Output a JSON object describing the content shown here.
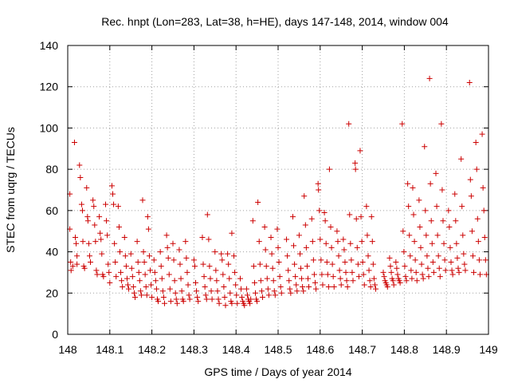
{
  "chart_data": {
    "type": "scatter",
    "title": "Rec. hnpt (Lon=283, Lat=38, h=HE), days 147-148, 2014, window 004",
    "xlabel": "GPS time / Days of year 2014",
    "ylabel": "STEC from uqrg / TECUs",
    "xlim": [
      148,
      149
    ],
    "ylim": [
      0,
      140
    ],
    "xticks": [
      148,
      148.1,
      148.2,
      148.3,
      148.4,
      148.5,
      148.6,
      148.7,
      148.8,
      148.9,
      149
    ],
    "xtick_labels": [
      "148",
      "148.1",
      "148.2",
      "148.3",
      "148.4",
      "148.5",
      "148.6",
      "148.7",
      "148.8",
      "148.9",
      "149"
    ],
    "yticks": [
      0,
      20,
      40,
      60,
      80,
      100,
      120,
      140
    ],
    "ytick_labels": [
      "0",
      "20",
      "40",
      "60",
      "80",
      "100",
      "120",
      "140"
    ],
    "grid": true,
    "marker": "plus",
    "color": "#cc0000",
    "points": [
      [
        148.005,
        68
      ],
      [
        148.005,
        51
      ],
      [
        148.007,
        35
      ],
      [
        148.008,
        31
      ],
      [
        148.012,
        33
      ],
      [
        148.016,
        93
      ],
      [
        148.018,
        47
      ],
      [
        148.02,
        44
      ],
      [
        148.022,
        38
      ],
      [
        148.022,
        34
      ],
      [
        148.028,
        82
      ],
      [
        148.03,
        76
      ],
      [
        148.033,
        63
      ],
      [
        148.035,
        60
      ],
      [
        148.036,
        45
      ],
      [
        148.038,
        33
      ],
      [
        148.04,
        32
      ],
      [
        148.045,
        71
      ],
      [
        148.047,
        57
      ],
      [
        148.048,
        55
      ],
      [
        148.05,
        44
      ],
      [
        148.052,
        38
      ],
      [
        148.054,
        35
      ],
      [
        148.06,
        65
      ],
      [
        148.062,
        62
      ],
      [
        148.064,
        53
      ],
      [
        148.066,
        45
      ],
      [
        148.068,
        31
      ],
      [
        148.07,
        29
      ],
      [
        148.075,
        57
      ],
      [
        148.077,
        49
      ],
      [
        148.079,
        46
      ],
      [
        148.081,
        39
      ],
      [
        148.083,
        29
      ],
      [
        148.085,
        28
      ],
      [
        148.09,
        63
      ],
      [
        148.092,
        55
      ],
      [
        148.094,
        48
      ],
      [
        148.096,
        34
      ],
      [
        148.098,
        30
      ],
      [
        148.1,
        25
      ],
      [
        148.105,
        72
      ],
      [
        148.107,
        68
      ],
      [
        148.109,
        63
      ],
      [
        148.111,
        44
      ],
      [
        148.113,
        35
      ],
      [
        148.115,
        28
      ],
      [
        148.12,
        62
      ],
      [
        148.122,
        52
      ],
      [
        148.124,
        40
      ],
      [
        148.126,
        30
      ],
      [
        148.128,
        26
      ],
      [
        148.13,
        23
      ],
      [
        148.135,
        47
      ],
      [
        148.137,
        38
      ],
      [
        148.139,
        33
      ],
      [
        148.141,
        27
      ],
      [
        148.143,
        24
      ],
      [
        148.145,
        22
      ],
      [
        148.15,
        39
      ],
      [
        148.152,
        32
      ],
      [
        148.154,
        28
      ],
      [
        148.156,
        23
      ],
      [
        148.158,
        20
      ],
      [
        148.16,
        18
      ],
      [
        148.165,
        45
      ],
      [
        148.167,
        35
      ],
      [
        148.169,
        30
      ],
      [
        148.171,
        26
      ],
      [
        148.173,
        21
      ],
      [
        148.175,
        19
      ],
      [
        148.178,
        65
      ],
      [
        148.18,
        40
      ],
      [
        148.182,
        35
      ],
      [
        148.184,
        29
      ],
      [
        148.186,
        23
      ],
      [
        148.188,
        19
      ],
      [
        148.19,
        57
      ],
      [
        148.192,
        51
      ],
      [
        148.194,
        38
      ],
      [
        148.196,
        31
      ],
      [
        148.198,
        24
      ],
      [
        148.2,
        18
      ],
      [
        148.205,
        36
      ],
      [
        148.207,
        30
      ],
      [
        148.209,
        26
      ],
      [
        148.211,
        22
      ],
      [
        148.213,
        17
      ],
      [
        148.215,
        16
      ],
      [
        148.22,
        40
      ],
      [
        148.222,
        33
      ],
      [
        148.224,
        27
      ],
      [
        148.226,
        21
      ],
      [
        148.228,
        18
      ],
      [
        148.23,
        15
      ],
      [
        148.235,
        48
      ],
      [
        148.237,
        42
      ],
      [
        148.239,
        37
      ],
      [
        148.241,
        29
      ],
      [
        148.243,
        22
      ],
      [
        148.245,
        16
      ],
      [
        148.25,
        44
      ],
      [
        148.252,
        36
      ],
      [
        148.254,
        26
      ],
      [
        148.256,
        20
      ],
      [
        148.258,
        17
      ],
      [
        148.26,
        15
      ],
      [
        148.265,
        41
      ],
      [
        148.267,
        34
      ],
      [
        148.269,
        27
      ],
      [
        148.271,
        21
      ],
      [
        148.273,
        17
      ],
      [
        148.275,
        16
      ],
      [
        148.28,
        45
      ],
      [
        148.282,
        37
      ],
      [
        148.284,
        30
      ],
      [
        148.286,
        24
      ],
      [
        148.288,
        19
      ],
      [
        148.29,
        17
      ],
      [
        148.3,
        36
      ],
      [
        148.302,
        33
      ],
      [
        148.304,
        25
      ],
      [
        148.306,
        21
      ],
      [
        148.308,
        18
      ],
      [
        148.31,
        16
      ],
      [
        148.32,
        47
      ],
      [
        148.322,
        34
      ],
      [
        148.324,
        28
      ],
      [
        148.326,
        23
      ],
      [
        148.328,
        19
      ],
      [
        148.33,
        17
      ],
      [
        148.332,
        58
      ],
      [
        148.335,
        46
      ],
      [
        148.337,
        33
      ],
      [
        148.339,
        27
      ],
      [
        148.341,
        21
      ],
      [
        148.343,
        17
      ],
      [
        148.35,
        40
      ],
      [
        148.352,
        31
      ],
      [
        148.354,
        26
      ],
      [
        148.356,
        21
      ],
      [
        148.358,
        17
      ],
      [
        148.36,
        15
      ],
      [
        148.365,
        39
      ],
      [
        148.367,
        36
      ],
      [
        148.369,
        29
      ],
      [
        148.371,
        23
      ],
      [
        148.373,
        18
      ],
      [
        148.375,
        14
      ],
      [
        148.38,
        39
      ],
      [
        148.382,
        34
      ],
      [
        148.384,
        27
      ],
      [
        148.386,
        20
      ],
      [
        148.388,
        16
      ],
      [
        148.39,
        15
      ],
      [
        148.39,
        49
      ],
      [
        148.395,
        38
      ],
      [
        148.397,
        30
      ],
      [
        148.399,
        24
      ],
      [
        148.401,
        19
      ],
      [
        148.403,
        15
      ],
      [
        148.41,
        27
      ],
      [
        148.412,
        22
      ],
      [
        148.414,
        18
      ],
      [
        148.416,
        16
      ],
      [
        148.418,
        15
      ],
      [
        148.42,
        14
      ],
      [
        148.425,
        22
      ],
      [
        148.427,
        19
      ],
      [
        148.429,
        17
      ],
      [
        148.431,
        16
      ],
      [
        148.433,
        15
      ],
      [
        148.435,
        17
      ],
      [
        148.44,
        55
      ],
      [
        148.442,
        33
      ],
      [
        148.444,
        25
      ],
      [
        148.446,
        20
      ],
      [
        148.448,
        17
      ],
      [
        148.45,
        16
      ],
      [
        148.452,
        64
      ],
      [
        148.455,
        45
      ],
      [
        148.457,
        34
      ],
      [
        148.459,
        26
      ],
      [
        148.461,
        21
      ],
      [
        148.463,
        18
      ],
      [
        148.468,
        52
      ],
      [
        148.47,
        41
      ],
      [
        148.472,
        33
      ],
      [
        148.474,
        27
      ],
      [
        148.476,
        22
      ],
      [
        148.478,
        19
      ],
      [
        148.483,
        47
      ],
      [
        148.485,
        39
      ],
      [
        148.487,
        32
      ],
      [
        148.489,
        26
      ],
      [
        148.491,
        21
      ],
      [
        148.493,
        19
      ],
      [
        148.498,
        51
      ],
      [
        148.5,
        42
      ],
      [
        148.502,
        35
      ],
      [
        148.504,
        28
      ],
      [
        148.506,
        23
      ],
      [
        148.508,
        20
      ],
      [
        148.52,
        46
      ],
      [
        148.522,
        38
      ],
      [
        148.524,
        31
      ],
      [
        148.526,
        26
      ],
      [
        148.528,
        22
      ],
      [
        148.53,
        20
      ],
      [
        148.535,
        57
      ],
      [
        148.537,
        43
      ],
      [
        148.539,
        34
      ],
      [
        148.541,
        28
      ],
      [
        148.543,
        24
      ],
      [
        148.545,
        21
      ],
      [
        148.55,
        48
      ],
      [
        148.552,
        39
      ],
      [
        148.554,
        32
      ],
      [
        148.556,
        27
      ],
      [
        148.558,
        23
      ],
      [
        148.56,
        21
      ],
      [
        148.562,
        67
      ],
      [
        148.565,
        53
      ],
      [
        148.567,
        42
      ],
      [
        148.569,
        33
      ],
      [
        148.571,
        27
      ],
      [
        148.573,
        23
      ],
      [
        148.58,
        56
      ],
      [
        148.582,
        45
      ],
      [
        148.584,
        36
      ],
      [
        148.586,
        29
      ],
      [
        148.588,
        25
      ],
      [
        148.59,
        22
      ],
      [
        148.595,
        73
      ],
      [
        148.596,
        70
      ],
      [
        148.598,
        60
      ],
      [
        148.6,
        46
      ],
      [
        148.602,
        36
      ],
      [
        148.604,
        29
      ],
      [
        148.606,
        24
      ],
      [
        148.61,
        59
      ],
      [
        148.612,
        55
      ],
      [
        148.614,
        44
      ],
      [
        148.616,
        35
      ],
      [
        148.618,
        29
      ],
      [
        148.62,
        23
      ],
      [
        148.622,
        80
      ],
      [
        148.625,
        52
      ],
      [
        148.627,
        42
      ],
      [
        148.629,
        34
      ],
      [
        148.631,
        28
      ],
      [
        148.633,
        23
      ],
      [
        148.64,
        50
      ],
      [
        148.642,
        45
      ],
      [
        148.644,
        38
      ],
      [
        148.646,
        31
      ],
      [
        148.648,
        27
      ],
      [
        148.65,
        24
      ],
      [
        148.655,
        46
      ],
      [
        148.657,
        41
      ],
      [
        148.659,
        35
      ],
      [
        148.661,
        30
      ],
      [
        148.663,
        26
      ],
      [
        148.665,
        23
      ],
      [
        148.668,
        102
      ],
      [
        148.67,
        58
      ],
      [
        148.672,
        44
      ],
      [
        148.674,
        36
      ],
      [
        148.676,
        30
      ],
      [
        148.678,
        26
      ],
      [
        148.683,
        83
      ],
      [
        148.684,
        80
      ],
      [
        148.686,
        56
      ],
      [
        148.688,
        42
      ],
      [
        148.69,
        34
      ],
      [
        148.692,
        28
      ],
      [
        148.695,
        89
      ],
      [
        148.697,
        57
      ],
      [
        148.699,
        45
      ],
      [
        148.701,
        35
      ],
      [
        148.703,
        29
      ],
      [
        148.705,
        24
      ],
      [
        148.71,
        62
      ],
      [
        148.712,
        48
      ],
      [
        148.714,
        38
      ],
      [
        148.716,
        31
      ],
      [
        148.718,
        26
      ],
      [
        148.72,
        23
      ],
      [
        148.722,
        57
      ],
      [
        148.724,
        45
      ],
      [
        148.726,
        34
      ],
      [
        148.728,
        27
      ],
      [
        148.73,
        24
      ],
      [
        148.732,
        22
      ],
      [
        148.75,
        30
      ],
      [
        148.752,
        28
      ],
      [
        148.754,
        26
      ],
      [
        148.756,
        25
      ],
      [
        148.758,
        24
      ],
      [
        148.76,
        23
      ],
      [
        148.765,
        37
      ],
      [
        148.767,
        33
      ],
      [
        148.769,
        30
      ],
      [
        148.771,
        27
      ],
      [
        148.773,
        26
      ],
      [
        148.775,
        24
      ],
      [
        148.78,
        35
      ],
      [
        148.782,
        32
      ],
      [
        148.784,
        29
      ],
      [
        148.786,
        27
      ],
      [
        148.788,
        26
      ],
      [
        148.79,
        25
      ],
      [
        148.795,
        102
      ],
      [
        148.797,
        50
      ],
      [
        148.799,
        40
      ],
      [
        148.801,
        33
      ],
      [
        148.803,
        28
      ],
      [
        148.805,
        26
      ],
      [
        148.808,
        73
      ],
      [
        148.81,
        62
      ],
      [
        148.812,
        48
      ],
      [
        148.814,
        38
      ],
      [
        148.816,
        31
      ],
      [
        148.818,
        27
      ],
      [
        148.82,
        71
      ],
      [
        148.822,
        58
      ],
      [
        148.824,
        45
      ],
      [
        148.826,
        36
      ],
      [
        148.828,
        30
      ],
      [
        148.83,
        26
      ],
      [
        148.835,
        65
      ],
      [
        148.837,
        52
      ],
      [
        148.839,
        42
      ],
      [
        148.841,
        34
      ],
      [
        148.843,
        29
      ],
      [
        148.845,
        27
      ],
      [
        148.848,
        91
      ],
      [
        148.85,
        60
      ],
      [
        148.852,
        48
      ],
      [
        148.854,
        38
      ],
      [
        148.856,
        32
      ],
      [
        148.858,
        28
      ],
      [
        148.86,
        124
      ],
      [
        148.862,
        73
      ],
      [
        148.864,
        55
      ],
      [
        148.866,
        44
      ],
      [
        148.868,
        35
      ],
      [
        148.87,
        30
      ],
      [
        148.875,
        78
      ],
      [
        148.877,
        62
      ],
      [
        148.879,
        48
      ],
      [
        148.881,
        38
      ],
      [
        148.883,
        32
      ],
      [
        148.885,
        28
      ],
      [
        148.888,
        102
      ],
      [
        148.89,
        70
      ],
      [
        148.892,
        55
      ],
      [
        148.894,
        44
      ],
      [
        148.896,
        36
      ],
      [
        148.898,
        31
      ],
      [
        148.905,
        60
      ],
      [
        148.907,
        52
      ],
      [
        148.909,
        42
      ],
      [
        148.911,
        35
      ],
      [
        148.913,
        31
      ],
      [
        148.915,
        29
      ],
      [
        148.92,
        68
      ],
      [
        148.922,
        55
      ],
      [
        148.924,
        44
      ],
      [
        148.926,
        37
      ],
      [
        148.928,
        32
      ],
      [
        148.93,
        30
      ],
      [
        148.935,
        85
      ],
      [
        148.937,
        62
      ],
      [
        148.939,
        48
      ],
      [
        148.941,
        39
      ],
      [
        148.943,
        34
      ],
      [
        148.945,
        31
      ],
      [
        148.955,
        122
      ],
      [
        148.957,
        75
      ],
      [
        148.959,
        67
      ],
      [
        148.961,
        50
      ],
      [
        148.963,
        38
      ],
      [
        148.965,
        30
      ],
      [
        148.97,
        93
      ],
      [
        148.972,
        80
      ],
      [
        148.974,
        56
      ],
      [
        148.976,
        45
      ],
      [
        148.978,
        36
      ],
      [
        148.98,
        29
      ],
      [
        148.985,
        97
      ],
      [
        148.987,
        71
      ],
      [
        148.989,
        60
      ],
      [
        148.991,
        47
      ],
      [
        148.993,
        36
      ],
      [
        148.995,
        29
      ]
    ]
  }
}
